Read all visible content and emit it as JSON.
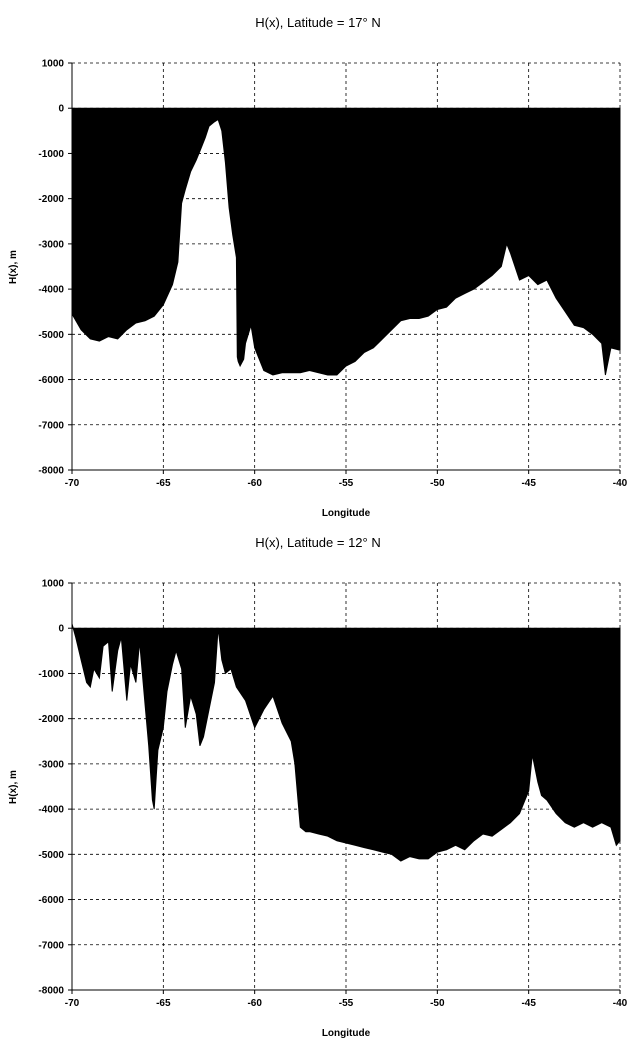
{
  "chart_data": [
    {
      "type": "area",
      "title": "H(x), Latitude = 17° N",
      "xlabel": "Longitude",
      "ylabel": "H(x), m",
      "xlim": [
        -70,
        -40
      ],
      "ylim": [
        -8000,
        1000
      ],
      "x_ticks": [
        "-70",
        "-65",
        "-60",
        "-55",
        "-50",
        "-45",
        "-40"
      ],
      "y_ticks": [
        "1000",
        "0",
        "-1000",
        "-2000",
        "-3000",
        "-4000",
        "-5000",
        "-6000",
        "-7000",
        "-8000"
      ],
      "grid": true,
      "fill_color": "#000000",
      "x": [
        -70,
        -69.5,
        -69,
        -68.5,
        -68,
        -67.5,
        -67,
        -66.5,
        -66,
        -65.5,
        -65,
        -64.5,
        -64.2,
        -64,
        -63.8,
        -63.5,
        -63.2,
        -63,
        -62.7,
        -62.5,
        -62.2,
        -62,
        -61.8,
        -61.6,
        -61.4,
        -61.2,
        -61.0,
        -60.95,
        -60.9,
        -60.8,
        -60.6,
        -60.5,
        -60.2,
        -60,
        -59.5,
        -59,
        -58.5,
        -58,
        -57.5,
        -57,
        -56.5,
        -56,
        -55.5,
        -55,
        -54.5,
        -54,
        -53.5,
        -53,
        -52.5,
        -52,
        -51.5,
        -51,
        -50.5,
        -50,
        -49.5,
        -49,
        -48.5,
        -48,
        -47.5,
        -47,
        -46.5,
        -46.2,
        -46,
        -45.5,
        -45,
        -44.5,
        -44,
        -43.5,
        -43,
        -42.5,
        -42,
        -41.5,
        -41,
        -40.8,
        -40.5,
        -40
      ],
      "y": [
        -4550,
        -4900,
        -5100,
        -5150,
        -5050,
        -5100,
        -4900,
        -4750,
        -4700,
        -4600,
        -4350,
        -3900,
        -3400,
        -2100,
        -1800,
        -1400,
        -1150,
        -950,
        -650,
        -400,
        -300,
        -250,
        -500,
        -1200,
        -2200,
        -2800,
        -3300,
        -5500,
        -5600,
        -5700,
        -5550,
        -5200,
        -4800,
        -5300,
        -5800,
        -5900,
        -5850,
        -5850,
        -5850,
        -5800,
        -5850,
        -5900,
        -5900,
        -5700,
        -5600,
        -5400,
        -5300,
        -5100,
        -4900,
        -4700,
        -4650,
        -4650,
        -4600,
        -4450,
        -4400,
        -4200,
        -4100,
        -4000,
        -3850,
        -3700,
        -3500,
        -3000,
        -3200,
        -3800,
        -3700,
        -3900,
        -3800,
        -4200,
        -4500,
        -4800,
        -4850,
        -5000,
        -5200,
        -5900,
        -5300,
        -5350
      ]
    },
    {
      "type": "area",
      "title": "H(x), Latitude = 12° N",
      "xlabel": "Longitude",
      "ylabel": "H(x), m",
      "xlim": [
        -70,
        -40
      ],
      "ylim": [
        -8000,
        1000
      ],
      "x_ticks": [
        "-70",
        "-65",
        "-60",
        "-55",
        "-50",
        "-45",
        "-40"
      ],
      "y_ticks": [
        "1000",
        "0",
        "-1000",
        "-2000",
        "-3000",
        "-4000",
        "-5000",
        "-6000",
        "-7000",
        "-8000"
      ],
      "grid": true,
      "fill_color": "#000000",
      "x": [
        -70,
        -69.8,
        -69.5,
        -69.2,
        -69,
        -68.8,
        -68.5,
        -68.3,
        -68,
        -67.8,
        -67.5,
        -67.3,
        -67,
        -66.8,
        -66.5,
        -66.3,
        -66,
        -65.8,
        -65.6,
        -65.5,
        -65.3,
        -65,
        -64.8,
        -64.5,
        -64.3,
        -64,
        -63.8,
        -63.5,
        -63.2,
        -63,
        -62.8,
        -62.5,
        -62.2,
        -62,
        -61.8,
        -61.6,
        -61.3,
        -61,
        -60.5,
        -60,
        -59.5,
        -59,
        -58.5,
        -58,
        -57.8,
        -57.5,
        -57.2,
        -57,
        -56.5,
        -56,
        -55.5,
        -55,
        -54.5,
        -54,
        -53.5,
        -53,
        -52.5,
        -52,
        -51.5,
        -51,
        -50.5,
        -50,
        -49.5,
        -49,
        -48.5,
        -48,
        -47.5,
        -47,
        -46.5,
        -46,
        -45.5,
        -45,
        -44.8,
        -44.5,
        -44.3,
        -44,
        -43.5,
        -43,
        -42.5,
        -42,
        -41.5,
        -41,
        -40.5,
        -40.2,
        -40
      ],
      "y": [
        100,
        -200,
        -700,
        -1200,
        -1300,
        -900,
        -1100,
        -400,
        -300,
        -1400,
        -500,
        -200,
        -1600,
        -800,
        -1200,
        -300,
        -1700,
        -2600,
        -3800,
        -4000,
        -2700,
        -2200,
        -1400,
        -800,
        -500,
        -900,
        -2200,
        -1500,
        -1900,
        -2600,
        -2400,
        -1800,
        -1200,
        0,
        -700,
        -1000,
        -900,
        -1300,
        -1600,
        -2200,
        -1800,
        -1500,
        -2100,
        -2500,
        -3000,
        -4400,
        -4500,
        -4500,
        -4550,
        -4600,
        -4700,
        -4750,
        -4800,
        -4850,
        -4900,
        -4950,
        -5000,
        -5150,
        -5050,
        -5100,
        -5100,
        -4950,
        -4900,
        -4800,
        -4900,
        -4700,
        -4550,
        -4600,
        -4450,
        -4300,
        -4100,
        -3600,
        -2800,
        -3400,
        -3700,
        -3800,
        -4100,
        -4300,
        -4400,
        -4300,
        -4400,
        -4300,
        -4400,
        -4800,
        -4700
      ]
    }
  ]
}
